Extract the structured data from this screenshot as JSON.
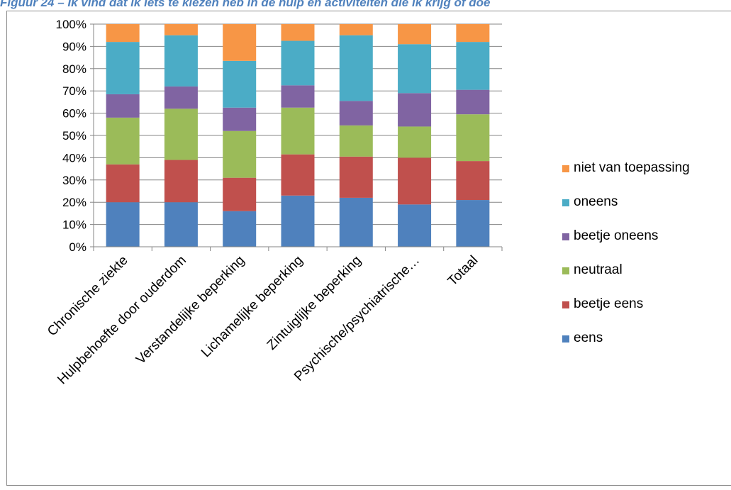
{
  "caption": "Figuur 24 – Ik vind dat ik iets te kiezen heb in de hulp en activiteiten die ik krijg of doe",
  "colors": {
    "eens": "#4f81bd",
    "beetje_eens": "#c0504d",
    "neutraal": "#9bbb59",
    "beetje_oneens": "#8064a2",
    "oneens": "#4bacc6",
    "niet_van_toepassing": "#f79646",
    "axis": "#868686",
    "caption": "#4f81bd"
  },
  "chart_data": {
    "type": "bar",
    "stacked": "percent",
    "title": "",
    "xlabel": "",
    "ylabel": "",
    "ylim": [
      0,
      100
    ],
    "y_ticks": [
      "0%",
      "10%",
      "20%",
      "30%",
      "40%",
      "50%",
      "60%",
      "70%",
      "80%",
      "90%",
      "100%"
    ],
    "grid": true,
    "legend_position": "right",
    "categories": [
      "Chronische ziekte",
      "Hulpbehoefte door ouderdom",
      "Verstandelijke beperking",
      "Lichamelijke beperking",
      "Zintuiglijke beperking",
      "Psychische/psychiatrische…",
      "Totaal"
    ],
    "series": [
      {
        "name": "eens",
        "color": "#4f81bd",
        "values": [
          20,
          20,
          16,
          23,
          22,
          19,
          21
        ]
      },
      {
        "name": "beetje eens",
        "color": "#c0504d",
        "values": [
          17,
          19,
          15,
          18.5,
          18.5,
          21,
          17.5
        ]
      },
      {
        "name": "neutraal",
        "color": "#9bbb59",
        "values": [
          21,
          23,
          21,
          21,
          14,
          14,
          21
        ]
      },
      {
        "name": "beetje oneens",
        "color": "#8064a2",
        "values": [
          10.5,
          10,
          10.5,
          10,
          11,
          15,
          11
        ]
      },
      {
        "name": "oneens",
        "color": "#4bacc6",
        "values": [
          23.5,
          23,
          21,
          20,
          29.5,
          22,
          21.5
        ]
      },
      {
        "name": "niet van toepassing",
        "color": "#f79646",
        "values": [
          8,
          5,
          16.5,
          7.5,
          5,
          9,
          8
        ]
      }
    ]
  }
}
